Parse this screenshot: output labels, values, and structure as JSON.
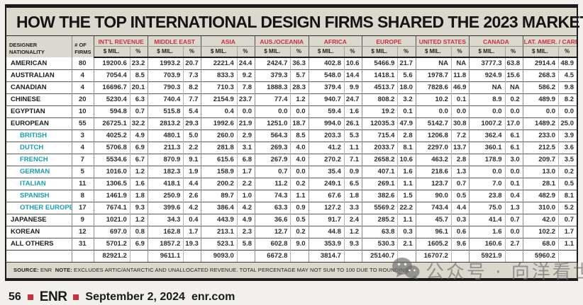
{
  "title": "HOW THE TOP INTERNATIONAL DESIGN FIRMS SHARED THE 2023 MARKET",
  "header": {
    "designer_nationality": "DESIGNER NATIONALITY",
    "num_firms": "# OF FIRMS",
    "mil_label": "$ MIL.",
    "pct_label": "%",
    "regions": [
      "INT'L REVENUE",
      "MIDDLE EAST",
      "ASIA",
      "AUS./OCEANIA",
      "AFRICA",
      "EUROPE",
      "UNITED STATES",
      "CANADA",
      "LAT. AMER. / CARIB."
    ]
  },
  "chart_data": {
    "type": "table",
    "title": "HOW THE TOP INTERNATIONAL DESIGN FIRMS SHARED THE 2023 MARKET",
    "columns": [
      "DESIGNER NATIONALITY",
      "# OF FIRMS",
      "INT'L REVENUE $ MIL.",
      "INT'L REVENUE %",
      "MIDDLE EAST $ MIL.",
      "MIDDLE EAST %",
      "ASIA $ MIL.",
      "ASIA %",
      "AUS./OCEANIA $ MIL.",
      "AUS./OCEANIA %",
      "AFRICA $ MIL.",
      "AFRICA %",
      "EUROPE $ MIL.",
      "EUROPE %",
      "UNITED STATES $ MIL.",
      "UNITED STATES %",
      "CANADA $ MIL.",
      "CANADA %",
      "LAT. AMER. / CARIB. $ MIL.",
      "LAT. AMER. / CARIB. %"
    ]
  },
  "rows": [
    {
      "nationality": "AMERICAN",
      "sub": false,
      "firms": "80",
      "values": [
        "19200.6",
        "23.2",
        "1993.2",
        "20.7",
        "2221.4",
        "24.4",
        "2424.7",
        "36.3",
        "402.8",
        "10.6",
        "5466.9",
        "21.7",
        "NA",
        "NA",
        "3777.3",
        "63.8",
        "2914.4",
        "48.9"
      ]
    },
    {
      "nationality": "AUSTRALIAN",
      "sub": false,
      "firms": "4",
      "values": [
        "7054.4",
        "8.5",
        "703.9",
        "7.3",
        "833.3",
        "9.2",
        "379.3",
        "5.7",
        "548.0",
        "14.4",
        "1418.1",
        "5.6",
        "1978.7",
        "11.8",
        "924.9",
        "15.6",
        "268.3",
        "4.5"
      ]
    },
    {
      "nationality": "CANADIAN",
      "sub": false,
      "firms": "4",
      "values": [
        "16696.7",
        "20.1",
        "790.3",
        "8.2",
        "710.3",
        "7.8",
        "1888.3",
        "28.3",
        "379.4",
        "9.9",
        "4513.7",
        "18.0",
        "7828.6",
        "46.9",
        "NA",
        "NA",
        "586.2",
        "9.8"
      ]
    },
    {
      "nationality": "CHINESE",
      "sub": false,
      "firms": "20",
      "values": [
        "5230.4",
        "6.3",
        "740.4",
        "7.7",
        "2154.9",
        "23.7",
        "77.4",
        "1.2",
        "940.7",
        "24.7",
        "808.2",
        "3.2",
        "10.2",
        "0.1",
        "8.9",
        "0.2",
        "489.9",
        "8.2"
      ]
    },
    {
      "nationality": "EGYPTIAN",
      "sub": false,
      "firms": "10",
      "values": [
        "594.8",
        "0.7",
        "515.8",
        "5.4",
        "0.4",
        "0.0",
        "0.0",
        "0.0",
        "59.4",
        "1.6",
        "19.2",
        "0.1",
        "0.0",
        "0.0",
        "0.0",
        "0.0",
        "0.0",
        "0.0"
      ]
    },
    {
      "nationality": "EUROPEAN",
      "sub": false,
      "firms": "55",
      "values": [
        "26725.1",
        "32.2",
        "2813.2",
        "29.3",
        "1992.6",
        "21.9",
        "1251.0",
        "18.7",
        "994.0",
        "26.1",
        "12035.3",
        "47.9",
        "5142.7",
        "30.8",
        "1007.2",
        "17.0",
        "1489.2",
        "25.0"
      ]
    },
    {
      "nationality": "BRITISH",
      "sub": true,
      "firms": "3",
      "values": [
        "4025.2",
        "4.9",
        "480.1",
        "5.0",
        "260.0",
        "2.9",
        "564.3",
        "8.5",
        "203.3",
        "5.3",
        "715.4",
        "2.8",
        "1206.8",
        "7.2",
        "362.4",
        "6.1",
        "233.0",
        "3.9"
      ]
    },
    {
      "nationality": "DUTCH",
      "sub": true,
      "firms": "4",
      "values": [
        "5706.8",
        "6.9",
        "211.3",
        "2.2",
        "281.8",
        "3.1",
        "269.3",
        "4.0",
        "41.2",
        "1.1",
        "2033.7",
        "8.1",
        "2297.0",
        "13.7",
        "360.1",
        "6.1",
        "212.5",
        "3.6"
      ]
    },
    {
      "nationality": "FRENCH",
      "sub": true,
      "firms": "7",
      "values": [
        "5534.6",
        "6.7",
        "870.9",
        "9.1",
        "615.6",
        "6.8",
        "267.9",
        "4.0",
        "270.2",
        "7.1",
        "2658.2",
        "10.6",
        "463.2",
        "2.8",
        "178.9",
        "3.0",
        "209.7",
        "3.5"
      ]
    },
    {
      "nationality": "GERMAN",
      "sub": true,
      "firms": "5",
      "values": [
        "1016.0",
        "1.2",
        "182.3",
        "1.9",
        "158.9",
        "1.7",
        "0.7",
        "0.0",
        "35.4",
        "0.9",
        "407.1",
        "1.6",
        "218.6",
        "1.3",
        "0.0",
        "0.0",
        "13.0",
        "0.2"
      ]
    },
    {
      "nationality": "ITALIAN",
      "sub": true,
      "firms": "11",
      "values": [
        "1306.5",
        "1.6",
        "418.1",
        "4.4",
        "200.2",
        "2.2",
        "11.2",
        "0.2",
        "249.1",
        "6.5",
        "269.1",
        "1.1",
        "123.7",
        "0.7",
        "7.0",
        "0.1",
        "28.1",
        "0.5"
      ]
    },
    {
      "nationality": "SPANISH",
      "sub": true,
      "firms": "8",
      "values": [
        "1461.9",
        "1.8",
        "250.9",
        "2.6",
        "89.7",
        "1.0",
        "74.3",
        "1.1",
        "67.6",
        "1.8",
        "382.6",
        "1.5",
        "90.0",
        "0.5",
        "23.8",
        "0.4",
        "482.9",
        "8.1"
      ]
    },
    {
      "nationality": "OTHER EUROPEAN",
      "sub": true,
      "firms": "17",
      "values": [
        "7674.1",
        "9.3",
        "399.6",
        "4.2",
        "386.4",
        "4.2",
        "63.3",
        "0.9",
        "127.2",
        "3.3",
        "5569.2",
        "22.2",
        "743.4",
        "4.4",
        "75.0",
        "1.3",
        "310.0",
        "5.2"
      ]
    },
    {
      "nationality": "JAPANESE",
      "sub": false,
      "firms": "9",
      "values": [
        "1021.0",
        "1.2",
        "34.3",
        "0.4",
        "443.9",
        "4.9",
        "36.6",
        "0.5",
        "91.7",
        "2.4",
        "285.2",
        "1.1",
        "45.7",
        "0.3",
        "41.4",
        "0.7",
        "42.0",
        "0.7"
      ]
    },
    {
      "nationality": "KOREAN",
      "sub": false,
      "firms": "12",
      "values": [
        "697.0",
        "0.8",
        "162.8",
        "1.7",
        "213.1",
        "2.3",
        "12.7",
        "0.2",
        "44.8",
        "1.2",
        "63.8",
        "0.3",
        "96.1",
        "0.6",
        "1.6",
        "0.0",
        "102.2",
        "1.7"
      ]
    },
    {
      "nationality": "ALL OTHERS",
      "sub": false,
      "firms": "31",
      "values": [
        "5701.2",
        "6.9",
        "1857.2",
        "19.3",
        "523.1",
        "5.8",
        "602.8",
        "9.0",
        "353.9",
        "9.3",
        "530.3",
        "2.1",
        "1605.2",
        "9.6",
        "160.6",
        "2.7",
        "68.0",
        "1.1"
      ]
    }
  ],
  "totals": [
    "82921.2",
    "9611.1",
    "9093.0",
    "6672.8",
    "3814.7",
    "25140.7",
    "16707.2",
    "5921.9",
    "5960.2"
  ],
  "footnote": {
    "source_label": "SOURCE:",
    "source_value": "ENR",
    "note_label": "NOTE:",
    "note_text": "EXCLUDES ARTIC/ANTARCTIC AND UNALLOCATED REVENUE. TOTAL PERCENTAGE MAY NOT SUM TO 100 DUE TO ROUNDING."
  },
  "page_footer": {
    "page_number": "56",
    "brand": "ENR",
    "date": "September 2, 2024",
    "site": "enr.com"
  },
  "watermark": {
    "text": "公众号 · 向洋看世界",
    "icon": "wechat-icon"
  },
  "colors": {
    "accent_red": "#c9303e",
    "sub_nationality_teal": "#18a0b2",
    "band_beige": "#dbd8ce",
    "border_black": "#1b1b1b"
  }
}
